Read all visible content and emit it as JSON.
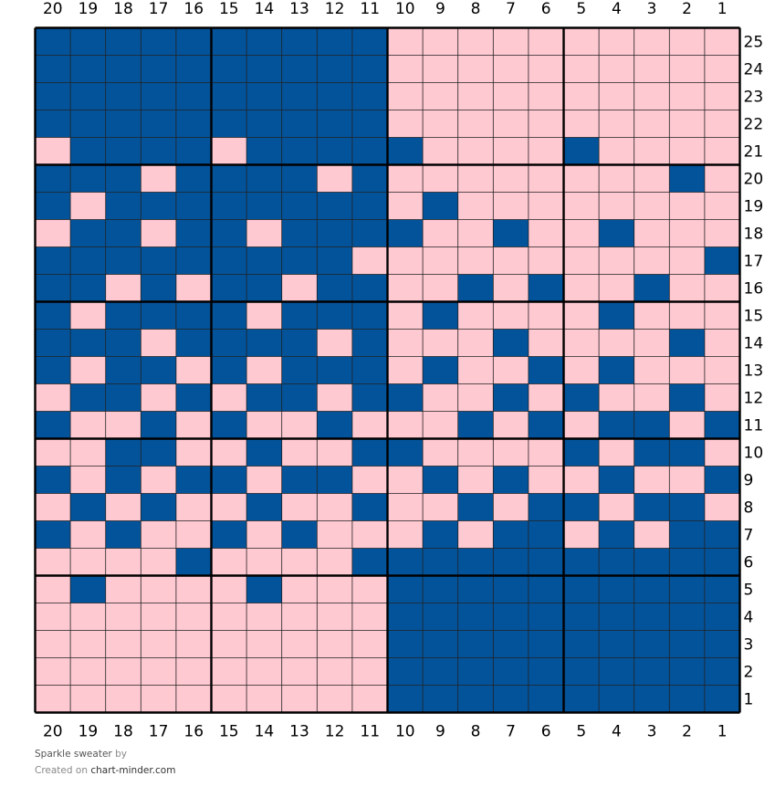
{
  "chart_data": {
    "type": "heatmap",
    "columns": [
      20,
      19,
      18,
      17,
      16,
      15,
      14,
      13,
      12,
      11,
      10,
      9,
      8,
      7,
      6,
      5,
      4,
      3,
      2,
      1
    ],
    "rows": [
      25,
      24,
      23,
      22,
      21,
      20,
      19,
      18,
      17,
      16,
      15,
      14,
      13,
      12,
      11,
      10,
      9,
      8,
      7,
      6,
      5,
      4,
      3,
      2,
      1
    ],
    "colors": {
      "P": "#ffc9d2",
      "B": "#03539b"
    },
    "legend": {
      "P": "pink",
      "B": "blue"
    },
    "grid_lines": "#222222",
    "grid": [
      "BBBBBBBBBBPPPPPPPPPP",
      "BBBBBBBBBBPPPPPPPPPP",
      "BBBBBBBBBBPPPPPPPPPP",
      "BBBBBBBBBBPPPPPPPPPP",
      "PBBBBPBBBBBPPPPBPPPP",
      "BBBPBBBBPBPPPPPPPPBP",
      "BPBBBBBBBBPBPPPPPPPP",
      "PBBPBBPBBBBPPBPPBPPP",
      "BBBBBBBBBPPPPPPPPPPB",
      "BBPBPBBPBBPPBPBPPBPP",
      "BPBBBBPBBBPBPPPPBPPP",
      "BBBPBBBBPBPPPBPPPPBP",
      "BPBBPBPBBBPBPPBPBPPP",
      "PBBPBPBBPBBPPBPBPPBP",
      "BPPBPBPPBPPPBPBPBBPB",
      "PPBBPPBPPBBPPPPBPBBP",
      "BPBPBBPBBPPBPBPPBPPB",
      "PBPBPPBPPBPPBPBBPBBP",
      "BPBPPBPBPPPBPBBPBPBB",
      "PPPPBPPPPBBBBBBBBBBB",
      "PBPPPPBPPPBBBBBBBBBB",
      "PPPPPPPPPPBBBBBBBBBB",
      "PPPPPPPPPPBBBBBBBBBB",
      "PPPPPPPPPPBBBBBBBBBB",
      "PPPPPPPPPPBBBBBBBBBB"
    ],
    "block_size": 5
  },
  "footer": {
    "title": "Sparkle sweater",
    "by": "by",
    "created_on": "Created on",
    "site": "chart-minder.com"
  }
}
